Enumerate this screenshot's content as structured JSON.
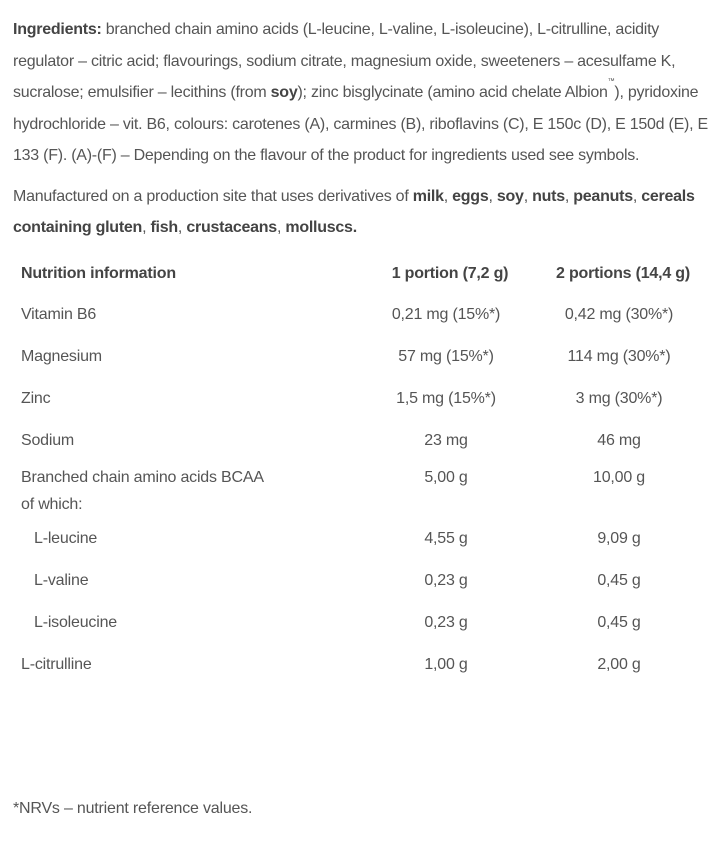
{
  "ingredients": {
    "label": "Ingredients:",
    "text1": " branched chain amino acids (L-leucine, L-valine, L-isoleucine), L-citrulline, acidity regulator – citric acid; flavourings, sodium citrate, magnesium oxide, sweeteners – acesulfame K, sucralose; emulsifier – lecithins (from ",
    "soy": "soy",
    "text2": "); zinc bisglycinate (amino acid chelate Albion",
    "tm": "™",
    "text3": "), pyridoxine hydrochloride – vit. B6, colours: carotenes (A), carmines (B), riboflavins (C), E 150c (D), E 150d (E), E 133 (F). (A)-(F) – Depending on the flavour of the product for ingredients used see symbols."
  },
  "allergens": {
    "intro": "Manufactured on a production site that uses derivatives of ",
    "items": [
      "milk",
      "eggs",
      "soy",
      "nuts",
      "peanuts",
      "cereals containing gluten",
      "fish",
      "crustaceans",
      "molluscs."
    ]
  },
  "table": {
    "headers": [
      "Nutrition information",
      "1 portion (7,2 g)",
      "2 portions (14,4 g)"
    ],
    "rows": [
      {
        "name": "Vitamin B6",
        "p1": "0,21 mg (15%*)",
        "p2": "0,42 mg (30%*)"
      },
      {
        "name": "Magnesium",
        "p1": "57 mg (15%*)",
        "p2": "114 mg (30%*)"
      },
      {
        "name": "Zinc",
        "p1": "1,5 mg (15%*)",
        "p2": "3 mg (30%*)"
      },
      {
        "name": "Sodium",
        "p1": "23 mg",
        "p2": "46 mg"
      },
      {
        "name": "Branched chain amino acids BCAA",
        "name2": "of which:",
        "p1": "5,00 g",
        "p2": "10,00 g"
      },
      {
        "name": "L-leucine",
        "p1": "4,55 g",
        "p2": "9,09 g"
      },
      {
        "name": "L-valine",
        "p1": "0,23 g",
        "p2": "0,45 g"
      },
      {
        "name": "L-isoleucine",
        "p1": "0,23 g",
        "p2": "0,45 g"
      },
      {
        "name": "L-citrulline",
        "p1": "1,00 g",
        "p2": "2,00 g"
      }
    ]
  },
  "footnote": "*NRVs – nutrient reference values."
}
